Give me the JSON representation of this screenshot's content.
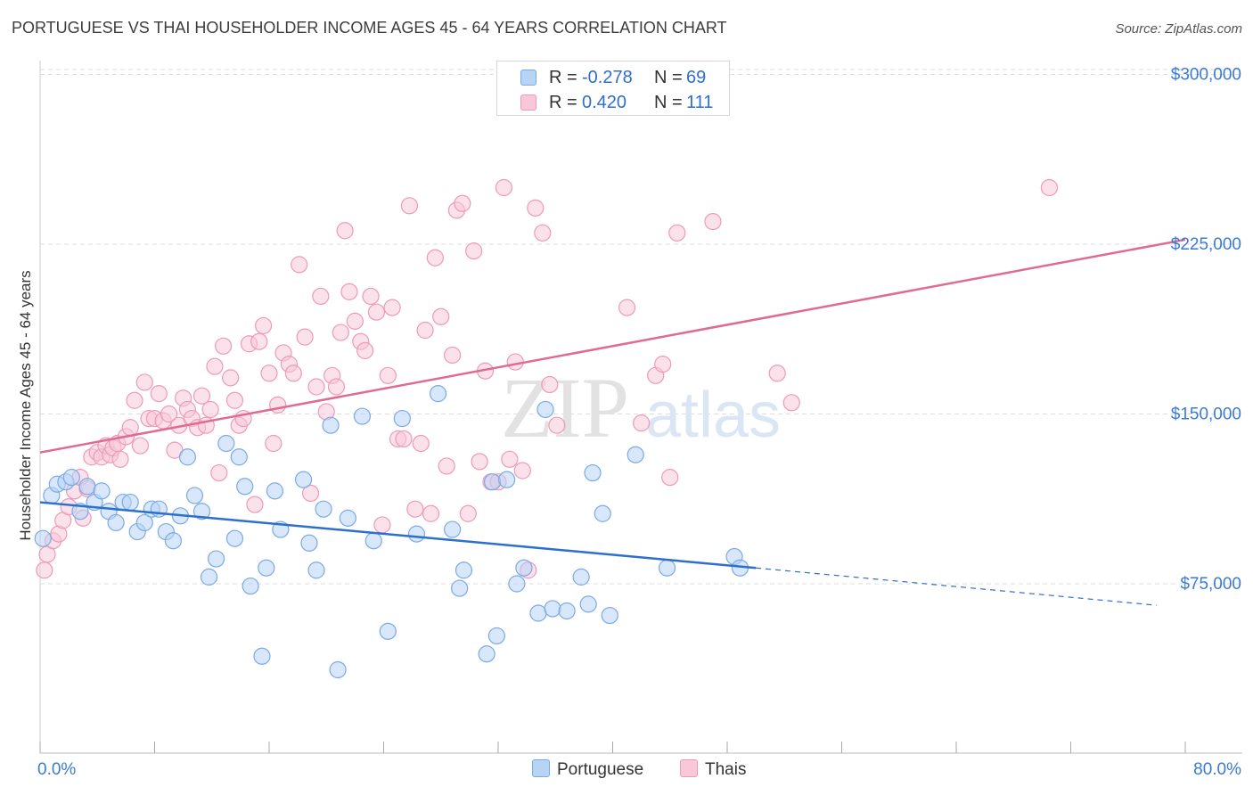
{
  "header": {
    "title": "PORTUGUESE VS THAI HOUSEHOLDER INCOME AGES 45 - 64 YEARS CORRELATION CHART",
    "source": "Source: ZipAtlas.com"
  },
  "watermark": {
    "zip": "ZIP",
    "atlas": "atlas"
  },
  "legend": {
    "rows": [
      {
        "r_label": "R = ",
        "r_value": "-0.278",
        "n_label": "N = ",
        "n_value": "69"
      },
      {
        "r_label": "R = ",
        "r_value": "0.420",
        "n_label": "N = ",
        "n_value": "111"
      }
    ]
  },
  "colors": {
    "portuguese_fill": "#b8d4f5",
    "portuguese_stroke": "#7aaae6",
    "portuguese_line": "#2d6fcc",
    "thais_fill": "#f8c8d8",
    "thais_stroke": "#ee9ab6",
    "thais_line": "#e06a94",
    "axis_label": "#3a7bd5",
    "grid": "#dddddd"
  },
  "chart_data": {
    "type": "scatter",
    "title": "PORTUGUESE VS THAI HOUSEHOLDER INCOME AGES 45 - 64 YEARS CORRELATION CHART",
    "xlabel": "",
    "ylabel": "Householder Income Ages 45 - 64 years",
    "xlim": [
      0,
      80
    ],
    "ylim": [
      10000,
      315000
    ],
    "x_tick_labels": [
      "0.0%",
      "80.0%"
    ],
    "y_ticks": [
      75000,
      150000,
      225000,
      300000
    ],
    "y_tick_labels": [
      "$75,000",
      "$150,000",
      "$225,000",
      "$300,000"
    ],
    "grid": true,
    "legend_position": "top-center",
    "series": [
      {
        "name": "Portuguese",
        "r": -0.278,
        "n": 69,
        "trend": {
          "x0": 0,
          "y0": 111000,
          "x1": 50,
          "y1": 82000,
          "dash_to_x": 78,
          "dash_to_y": 65500
        },
        "points": [
          [
            0.2,
            95000
          ],
          [
            0.8,
            114000
          ],
          [
            1.2,
            119000
          ],
          [
            1.8,
            120000
          ],
          [
            2.2,
            122000
          ],
          [
            2.8,
            107000
          ],
          [
            3.3,
            118000
          ],
          [
            3.8,
            111000
          ],
          [
            4.3,
            116000
          ],
          [
            4.8,
            107000
          ],
          [
            5.3,
            102000
          ],
          [
            5.8,
            111000
          ],
          [
            6.3,
            111000
          ],
          [
            6.8,
            98000
          ],
          [
            7.3,
            102000
          ],
          [
            7.8,
            108000
          ],
          [
            8.3,
            108000
          ],
          [
            8.8,
            98000
          ],
          [
            9.3,
            94000
          ],
          [
            9.8,
            105000
          ],
          [
            10.3,
            131000
          ],
          [
            10.8,
            114000
          ],
          [
            11.3,
            107000
          ],
          [
            11.8,
            78000
          ],
          [
            12.3,
            86000
          ],
          [
            13.0,
            137000
          ],
          [
            13.6,
            95000
          ],
          [
            13.9,
            131000
          ],
          [
            14.3,
            118000
          ],
          [
            14.7,
            74000
          ],
          [
            15.5,
            43000
          ],
          [
            15.8,
            82000
          ],
          [
            16.4,
            116000
          ],
          [
            16.8,
            99000
          ],
          [
            18.4,
            121000
          ],
          [
            18.8,
            93000
          ],
          [
            19.3,
            81000
          ],
          [
            19.8,
            108000
          ],
          [
            20.3,
            145000
          ],
          [
            20.8,
            37000
          ],
          [
            21.5,
            104000
          ],
          [
            22.5,
            149000
          ],
          [
            23.3,
            94000
          ],
          [
            24.3,
            54000
          ],
          [
            25.3,
            148000
          ],
          [
            26.3,
            97000
          ],
          [
            27.8,
            159000
          ],
          [
            28.8,
            99000
          ],
          [
            29.3,
            73000
          ],
          [
            29.6,
            81000
          ],
          [
            31.2,
            44000
          ],
          [
            31.6,
            120000
          ],
          [
            31.9,
            52000
          ],
          [
            32.6,
            121000
          ],
          [
            33.3,
            75000
          ],
          [
            33.8,
            82000
          ],
          [
            34.8,
            62000
          ],
          [
            35.3,
            152000
          ],
          [
            35.8,
            64000
          ],
          [
            36.8,
            63000
          ],
          [
            37.8,
            78000
          ],
          [
            38.3,
            66000
          ],
          [
            38.6,
            124000
          ],
          [
            39.3,
            106000
          ],
          [
            39.8,
            61000
          ],
          [
            41.6,
            132000
          ],
          [
            43.8,
            82000
          ],
          [
            48.5,
            87000
          ],
          [
            48.9,
            82000
          ]
        ]
      },
      {
        "name": "Thais",
        "r": 0.42,
        "n": 111,
        "trend": {
          "x0": 0,
          "y0": 133000,
          "x1": 80,
          "y1": 227000
        },
        "points": [
          [
            0.3,
            81000
          ],
          [
            0.5,
            88000
          ],
          [
            0.9,
            94000
          ],
          [
            1.3,
            97000
          ],
          [
            1.6,
            103000
          ],
          [
            2.0,
            109000
          ],
          [
            2.4,
            116000
          ],
          [
            2.8,
            122000
          ],
          [
            3.0,
            104000
          ],
          [
            3.3,
            117000
          ],
          [
            3.6,
            131000
          ],
          [
            4.0,
            133000
          ],
          [
            4.3,
            131000
          ],
          [
            4.6,
            136000
          ],
          [
            4.9,
            132000
          ],
          [
            5.1,
            135000
          ],
          [
            5.4,
            137000
          ],
          [
            5.6,
            130000
          ],
          [
            6.0,
            140000
          ],
          [
            6.3,
            144000
          ],
          [
            6.6,
            156000
          ],
          [
            7.0,
            136000
          ],
          [
            7.3,
            164000
          ],
          [
            7.6,
            148000
          ],
          [
            8.0,
            148000
          ],
          [
            8.3,
            159000
          ],
          [
            8.6,
            147000
          ],
          [
            9.0,
            150000
          ],
          [
            9.4,
            134000
          ],
          [
            9.7,
            145000
          ],
          [
            10.0,
            157000
          ],
          [
            10.3,
            152000
          ],
          [
            10.6,
            148000
          ],
          [
            11.0,
            144000
          ],
          [
            11.3,
            158000
          ],
          [
            11.6,
            145000
          ],
          [
            11.9,
            152000
          ],
          [
            12.2,
            171000
          ],
          [
            12.5,
            124000
          ],
          [
            12.8,
            180000
          ],
          [
            13.3,
            166000
          ],
          [
            13.6,
            156000
          ],
          [
            13.9,
            145000
          ],
          [
            14.2,
            148000
          ],
          [
            14.6,
            181000
          ],
          [
            15.0,
            110000
          ],
          [
            15.3,
            182000
          ],
          [
            15.6,
            189000
          ],
          [
            16.0,
            168000
          ],
          [
            16.3,
            137000
          ],
          [
            16.6,
            154000
          ],
          [
            17.0,
            177000
          ],
          [
            17.4,
            172000
          ],
          [
            17.7,
            168000
          ],
          [
            18.1,
            216000
          ],
          [
            18.5,
            184000
          ],
          [
            18.9,
            115000
          ],
          [
            19.3,
            162000
          ],
          [
            19.6,
            202000
          ],
          [
            20.0,
            151000
          ],
          [
            20.4,
            167000
          ],
          [
            20.7,
            162000
          ],
          [
            21.0,
            186000
          ],
          [
            21.3,
            231000
          ],
          [
            21.6,
            204000
          ],
          [
            22.0,
            191000
          ],
          [
            22.4,
            182000
          ],
          [
            22.7,
            178000
          ],
          [
            23.1,
            202000
          ],
          [
            23.5,
            195000
          ],
          [
            23.9,
            101000
          ],
          [
            24.3,
            167000
          ],
          [
            24.6,
            197000
          ],
          [
            25.0,
            139000
          ],
          [
            25.4,
            139000
          ],
          [
            25.8,
            242000
          ],
          [
            26.2,
            108000
          ],
          [
            26.6,
            137000
          ],
          [
            26.9,
            187000
          ],
          [
            27.3,
            106000
          ],
          [
            27.6,
            219000
          ],
          [
            28.0,
            193000
          ],
          [
            28.4,
            127000
          ],
          [
            28.8,
            176000
          ],
          [
            29.1,
            240000
          ],
          [
            29.5,
            243000
          ],
          [
            29.9,
            106000
          ],
          [
            30.3,
            222000
          ],
          [
            30.7,
            129000
          ],
          [
            31.1,
            169000
          ],
          [
            31.5,
            120000
          ],
          [
            32.0,
            120000
          ],
          [
            32.4,
            250000
          ],
          [
            32.8,
            130000
          ],
          [
            33.2,
            173000
          ],
          [
            33.7,
            125000
          ],
          [
            34.1,
            81000
          ],
          [
            34.6,
            241000
          ],
          [
            35.1,
            230000
          ],
          [
            35.6,
            163000
          ],
          [
            36.1,
            145000
          ],
          [
            41.0,
            197000
          ],
          [
            42.0,
            146000
          ],
          [
            43.0,
            167000
          ],
          [
            43.5,
            172000
          ],
          [
            44.0,
            122000
          ],
          [
            44.5,
            230000
          ],
          [
            47.0,
            235000
          ],
          [
            51.5,
            168000
          ],
          [
            52.5,
            155000
          ],
          [
            70.5,
            250000
          ]
        ]
      }
    ]
  },
  "bottom_legend": {
    "items": [
      "Portuguese",
      "Thais"
    ]
  }
}
